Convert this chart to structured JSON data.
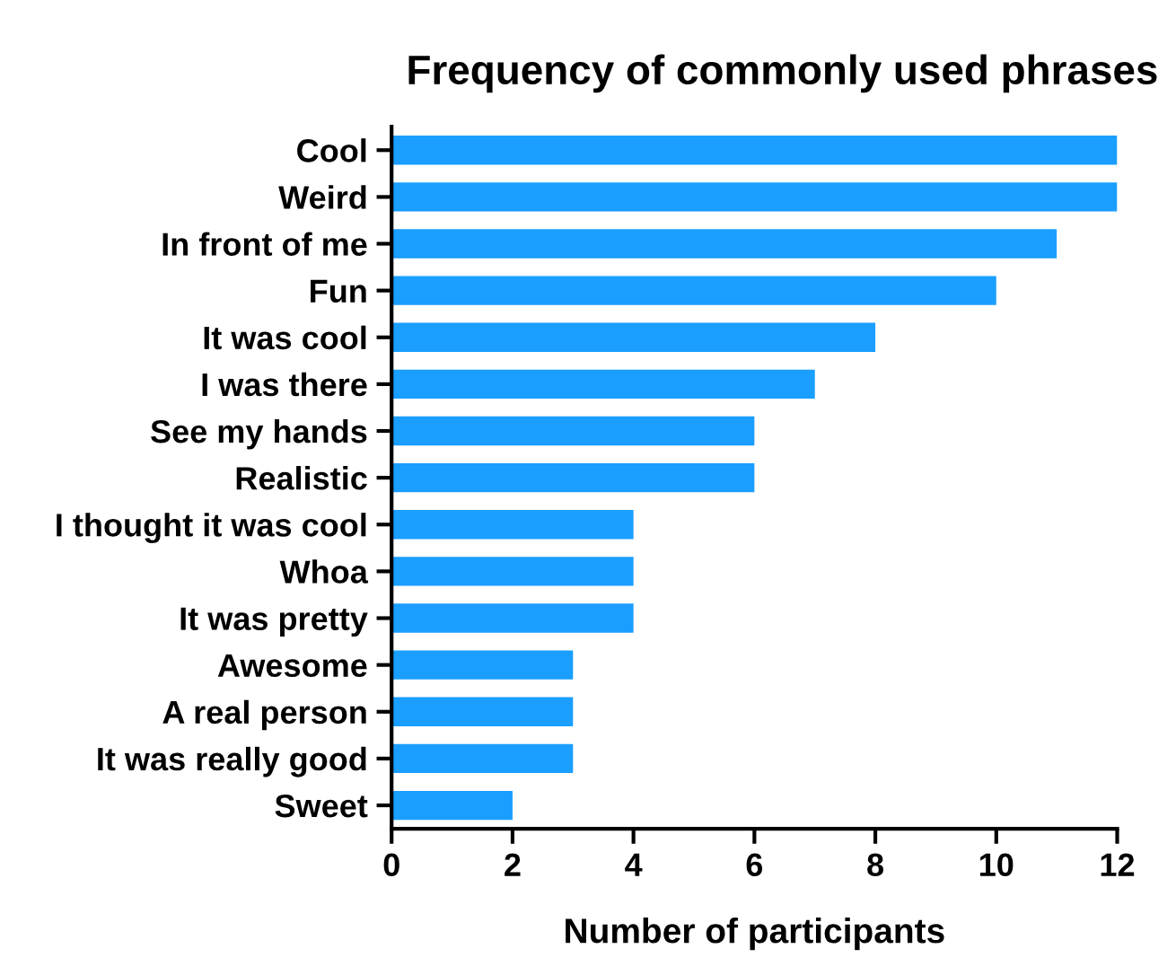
{
  "chart_data": {
    "type": "bar",
    "orientation": "horizontal",
    "title": "Frequency of commonly used phrases",
    "xlabel": "Number of participants",
    "categories": [
      "Cool",
      "Weird",
      "In front of me",
      "Fun",
      "It was cool",
      "I was there",
      "See my hands",
      "Realistic",
      "I thought it was cool",
      "Whoa",
      "It was pretty",
      "Awesome",
      "A real person",
      "It was really good",
      "Sweet"
    ],
    "values": [
      12,
      12,
      11,
      10,
      8,
      7,
      6,
      6,
      4,
      4,
      4,
      3,
      3,
      3,
      2
    ],
    "color": "#1a9eff",
    "xlim": [
      0,
      12
    ],
    "xticks": [
      0,
      2,
      4,
      6,
      8,
      10,
      12
    ],
    "grid": false,
    "legend": false
  }
}
